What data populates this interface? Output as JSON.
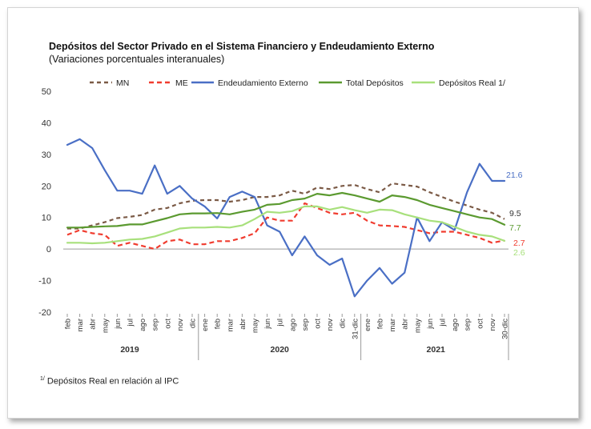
{
  "chart_data": {
    "type": "line",
    "title": "Depósitos del Sector Privado en el Sistema Financiero y Endeudamiento Externo",
    "subtitle": "(Variaciones porcentuales interanuales)",
    "ylim": [
      -20,
      50
    ],
    "yticks": [
      -20,
      -10,
      0,
      10,
      20,
      30,
      40,
      50
    ],
    "grid": false,
    "legend_position": "top",
    "categories": [
      "feb",
      "mar",
      "abr",
      "may",
      "jun",
      "jul",
      "ago",
      "sep",
      "oct",
      "nov",
      "dic",
      "ene",
      "feb",
      "mar",
      "abr",
      "may",
      "jun",
      "jul",
      "ago",
      "sep",
      "oct",
      "nov",
      "dic",
      "31-dic",
      "ene",
      "feb",
      "mar",
      "abr",
      "may",
      "jun",
      "jul",
      "ago",
      "sep",
      "oct",
      "nov",
      "30-dic"
    ],
    "years": [
      {
        "label": "2019",
        "start": 0,
        "end": 10
      },
      {
        "label": "2020",
        "start": 11,
        "end": 23
      },
      {
        "label": "2021",
        "start": 24,
        "end": 35
      }
    ],
    "series": [
      {
        "name": "MN",
        "color": "#7b5a46",
        "dash": "5,4",
        "width": 2.2,
        "values": [
          6.5,
          6.5,
          7.5,
          8.5,
          9.8,
          10.2,
          10.8,
          12.5,
          13,
          14.5,
          15.3,
          15.5,
          15.5,
          15,
          15.5,
          16.5,
          16.5,
          17,
          18.5,
          17.5,
          19.5,
          19,
          20,
          20.3,
          19,
          18,
          20.8,
          20.3,
          19.8,
          18,
          16.5,
          15,
          13.8,
          12.5,
          11.5,
          9.5
        ]
      },
      {
        "name": "ME",
        "color": "#f03c2f",
        "dash": "6,4",
        "width": 2.2,
        "values": [
          4.5,
          6,
          5,
          4.5,
          1,
          2,
          1,
          0,
          2.5,
          3,
          1.5,
          1.5,
          2.5,
          2.5,
          3.5,
          5,
          10,
          9,
          9,
          14.5,
          13,
          11.5,
          11,
          11.5,
          9,
          7.5,
          7.3,
          7,
          6,
          5,
          5.5,
          5.5,
          4.5,
          3.5,
          2,
          2.7
        ]
      },
      {
        "name": "Endeudamiento Externo",
        "color": "#4a6fc5",
        "dash": "",
        "width": 2.2,
        "values": [
          33,
          34.8,
          32,
          25,
          18.5,
          18.5,
          17.5,
          26.5,
          17.5,
          20,
          16,
          13.5,
          9.7,
          16.5,
          18.2,
          16.5,
          7.5,
          5.5,
          -2,
          4,
          -2,
          -5,
          -3,
          -15,
          -10,
          -6,
          -11,
          -7.5,
          10,
          2.5,
          8.5,
          6,
          18,
          27,
          21.6,
          21.6
        ]
      },
      {
        "name": "Total Depósitos",
        "color": "#5b9a30",
        "dash": "",
        "width": 2.2,
        "values": [
          6.8,
          6.8,
          7,
          7.2,
          7.3,
          7.8,
          7.8,
          8.8,
          9.8,
          11,
          11.3,
          11.3,
          11.4,
          11,
          11.8,
          12.5,
          14,
          14.3,
          15.5,
          16,
          17.5,
          17,
          17.8,
          17,
          16,
          15,
          17,
          16.5,
          15.5,
          14,
          13,
          12,
          11,
          10,
          9.5,
          7.7
        ]
      },
      {
        "name": "Depósitos Real 1/",
        "color": "#a8e07c",
        "dash": "",
        "width": 2.2,
        "values": [
          2,
          2,
          1.8,
          2,
          2.5,
          3,
          3.2,
          4,
          5.2,
          6.5,
          6.8,
          6.8,
          7,
          6.8,
          7.5,
          9.5,
          11.8,
          11.5,
          12,
          13.5,
          13.5,
          12.5,
          13.3,
          12.3,
          11.5,
          12.5,
          12.3,
          11,
          10,
          9,
          8.5,
          7,
          5.5,
          4.5,
          4,
          2.6
        ]
      }
    ],
    "end_labels": [
      {
        "series": "Endeudamiento Externo",
        "text": "21.6",
        "color": "#4a6fc5"
      },
      {
        "series": "MN",
        "text": "9.5",
        "color": "#333333"
      },
      {
        "series": "Total Depósitos",
        "text": "7.7",
        "color": "#5b9a30"
      },
      {
        "series": "ME",
        "text": "2.7",
        "color": "#f03c2f"
      },
      {
        "series": "Depósitos Real 1/",
        "text": "2.6",
        "color": "#a8e07c"
      }
    ]
  },
  "footnote": {
    "marker": "1/",
    "text": " Depósitos Real en relación al IPC"
  }
}
